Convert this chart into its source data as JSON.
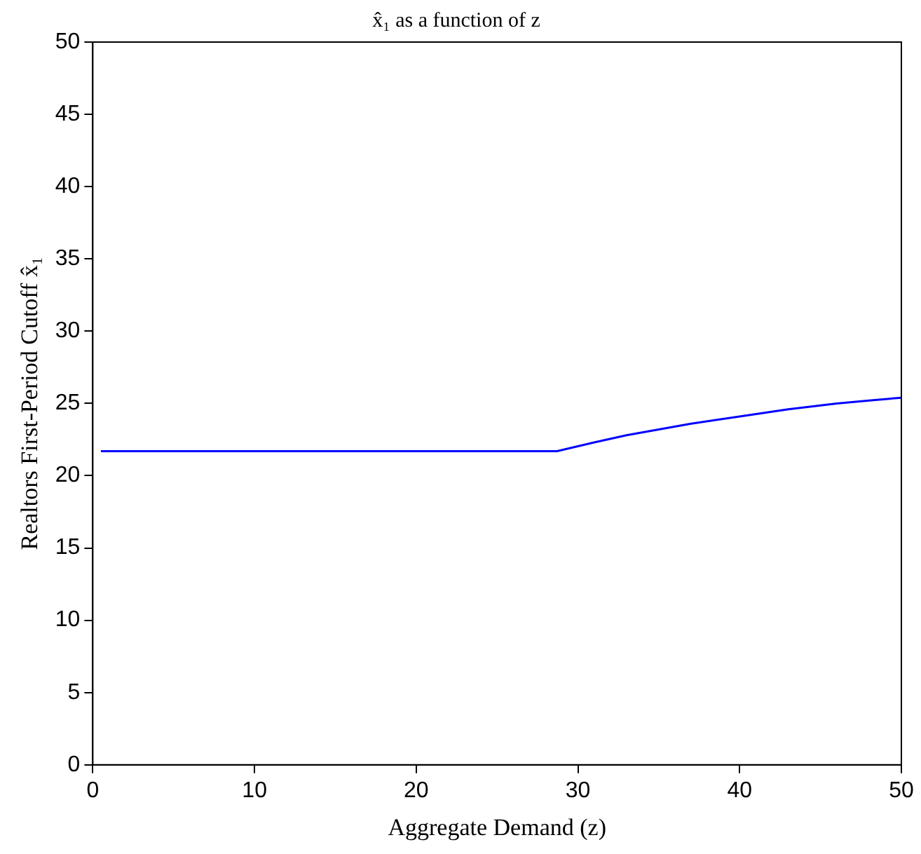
{
  "chart_data": {
    "type": "line",
    "title": "x̂₁ as a function of z",
    "xlabel": "Aggregate Demand (z)",
    "ylabel": "Realtors First-Period Cutoff x̂₁",
    "x": [
      0.5,
      28.7,
      31,
      33,
      35,
      37,
      40,
      43,
      46,
      48,
      50
    ],
    "series": [
      {
        "color": "#0000ff",
        "values": [
          21.7,
          21.7,
          22.3,
          22.8,
          23.2,
          23.6,
          24.1,
          24.6,
          25.0,
          25.2,
          25.4
        ]
      }
    ],
    "xlim": [
      0,
      50
    ],
    "xticks": [
      0,
      10,
      20,
      30,
      40,
      50
    ],
    "ylim": [
      0,
      50
    ],
    "yticks": [
      0,
      5,
      10,
      15,
      20,
      25,
      30,
      35,
      40,
      45,
      50
    ],
    "grid": false,
    "legend": false,
    "marker": "none",
    "line_style": "solid"
  }
}
